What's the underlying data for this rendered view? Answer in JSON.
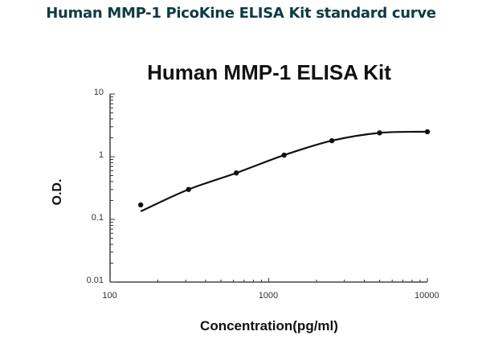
{
  "page_title": "Human MMP-1 PicoKine ELISA Kit standard curve",
  "chart_data": {
    "type": "line",
    "title": "Human MMP-1 ELISA Kit",
    "xlabel": "Concentration(pg/ml)",
    "ylabel": "O.D.",
    "xscale": "log",
    "yscale": "log",
    "xlim": [
      100,
      10000
    ],
    "ylim": [
      0.01,
      10
    ],
    "xticks": [
      "100",
      "1000",
      "10000"
    ],
    "yticks": [
      "10",
      "1",
      "0.1",
      "0.01"
    ],
    "grid": false,
    "series": [
      {
        "name": "Standard curve",
        "x": [
          156,
          312.5,
          625,
          1250,
          2500,
          5000,
          10000
        ],
        "y": [
          0.17,
          0.3,
          0.55,
          1.06,
          1.8,
          2.4,
          2.5
        ]
      }
    ]
  }
}
